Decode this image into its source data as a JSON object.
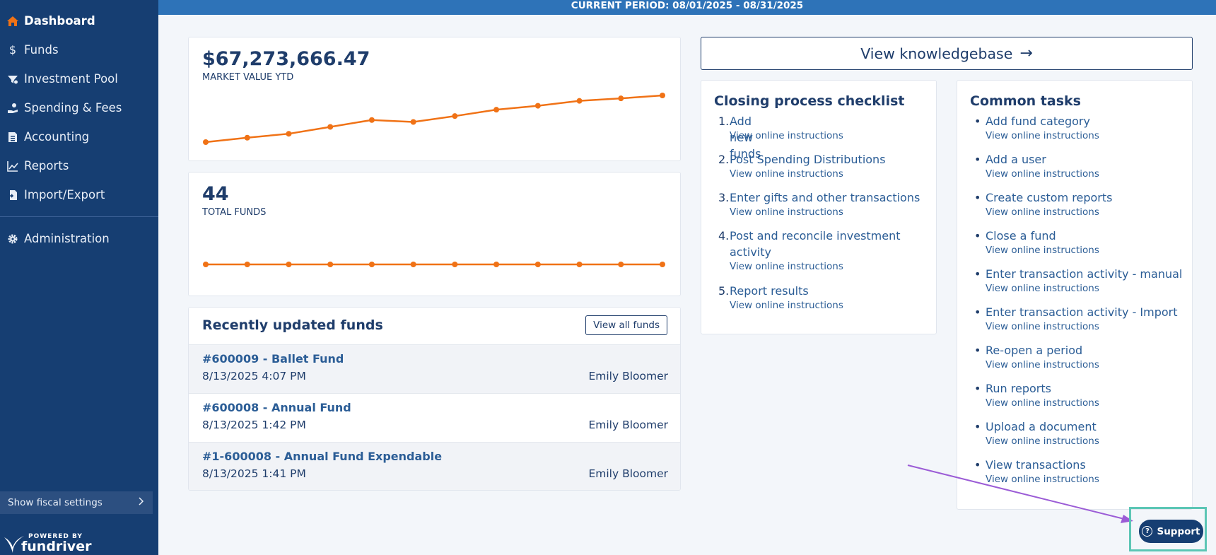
{
  "sidebar": {
    "items": [
      {
        "label": "Dashboard",
        "icon": "home-icon",
        "active": true
      },
      {
        "label": "Funds",
        "icon": "dollar-icon"
      },
      {
        "label": "Investment Pool",
        "icon": "pool-icon"
      },
      {
        "label": "Spending & Fees",
        "icon": "hand-coin-icon"
      },
      {
        "label": "Accounting",
        "icon": "ledger-icon"
      },
      {
        "label": "Reports",
        "icon": "chart-line-icon"
      },
      {
        "label": "Import/Export",
        "icon": "file-import-icon"
      }
    ],
    "admin": {
      "label": "Administration",
      "icon": "gear-icon"
    },
    "fiscal_settings": "Show fiscal settings",
    "powered_by": "POWERED BY",
    "brand": "fundriver"
  },
  "topbar": {
    "period": "CURRENT PERIOD: 08/01/2025 - 08/31/2025"
  },
  "market_card": {
    "value": "$67,273,666.47",
    "caption": "MARKET VALUE YTD",
    "line_color": "#f07216",
    "trend": [
      0,
      0.09,
      0.17,
      0.31,
      0.45,
      0.41,
      0.53,
      0.66,
      0.74,
      0.84,
      0.89,
      0.95
    ]
  },
  "funds_card": {
    "value": "44",
    "caption": "TOTAL FUNDS",
    "line_color": "#f07216",
    "trend": [
      44,
      44,
      44,
      44,
      44,
      44,
      44,
      44,
      44,
      44,
      44,
      44
    ]
  },
  "recent": {
    "title": "Recently updated funds",
    "view_all": "View all funds",
    "rows": [
      {
        "name": "#600009 - Ballet Fund",
        "date": "8/13/2025 4:07 PM",
        "user": "Emily Bloomer"
      },
      {
        "name": "#600008 - Annual Fund",
        "date": "8/13/2025 1:42 PM",
        "user": "Emily Bloomer"
      },
      {
        "name": "#1-600008 - Annual Fund Expendable",
        "date": "8/13/2025 1:41 PM",
        "user": "Emily Bloomer"
      }
    ]
  },
  "knowledgebase": {
    "label": "View knowledgebase",
    "arrow": "→"
  },
  "checklist": {
    "title": "Closing process checklist",
    "instructions": "View online instructions",
    "items": [
      {
        "num": "1.",
        "label": "Add new funds"
      },
      {
        "num": "2.",
        "label": "Post Spending Distributions"
      },
      {
        "num": "3.",
        "label": "Enter gifts and other transactions"
      },
      {
        "num": "4.",
        "label_line1": "Post and reconcile investment",
        "label_line2": "activity"
      },
      {
        "num": "5.",
        "label": "Report results"
      }
    ]
  },
  "tasks": {
    "title": "Common tasks",
    "instructions": "View online instructions",
    "items": [
      "Add fund category",
      "Add a user",
      "Create custom reports",
      "Close a fund",
      "Enter transaction activity - manual",
      "Enter transaction activity - Import",
      "Re-open a period",
      "Run reports",
      "Upload a document",
      "View transactions"
    ]
  },
  "support": {
    "label": "Support",
    "icon_glyph": "?"
  },
  "annotation": {
    "arrow_color": "#9b5cd6",
    "highlight_color": "#5cc6b5"
  }
}
